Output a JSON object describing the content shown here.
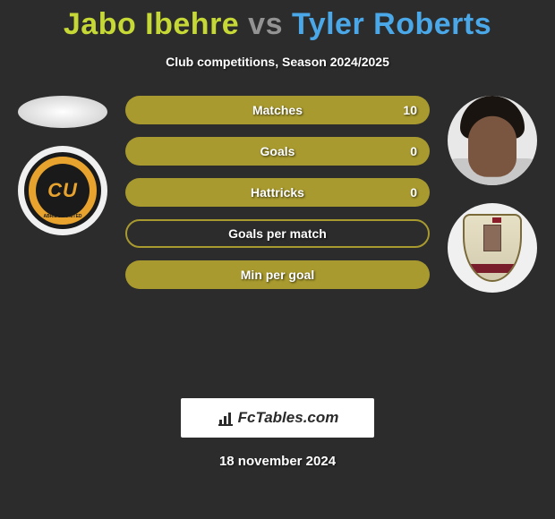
{
  "title": {
    "player1": "Jabo Ibehre",
    "vs": "vs",
    "player2": "Tyler Roberts",
    "color1": "#c6d835",
    "colorVs": "#939393",
    "color2": "#4aa8e8"
  },
  "subtitle": "Club competitions, Season 2024/2025",
  "stats": {
    "bar_bg_filled": "#a89a2e",
    "bar_bg_empty_border": "#a89a2e",
    "rows": [
      {
        "label": "Matches",
        "left": "",
        "right": "10",
        "fill": "full"
      },
      {
        "label": "Goals",
        "left": "",
        "right": "0",
        "fill": "full"
      },
      {
        "label": "Hattricks",
        "left": "",
        "right": "0",
        "fill": "full"
      },
      {
        "label": "Goals per match",
        "left": "",
        "right": "",
        "fill": "empty"
      },
      {
        "label": "Min per goal",
        "left": "",
        "right": "",
        "fill": "full"
      }
    ]
  },
  "left": {
    "player_placeholder_type": "ellipse",
    "club_name": "Cambridge United",
    "club_badge_text": "CU",
    "club_badge_band": "ABRIDGE UNITED"
  },
  "right": {
    "player_placeholder_type": "photo",
    "club_name": "Northampton"
  },
  "brand": "FcTables.com",
  "date": "18 november 2024",
  "colors": {
    "page_bg": "#2c2c2c",
    "text": "#ffffff"
  }
}
